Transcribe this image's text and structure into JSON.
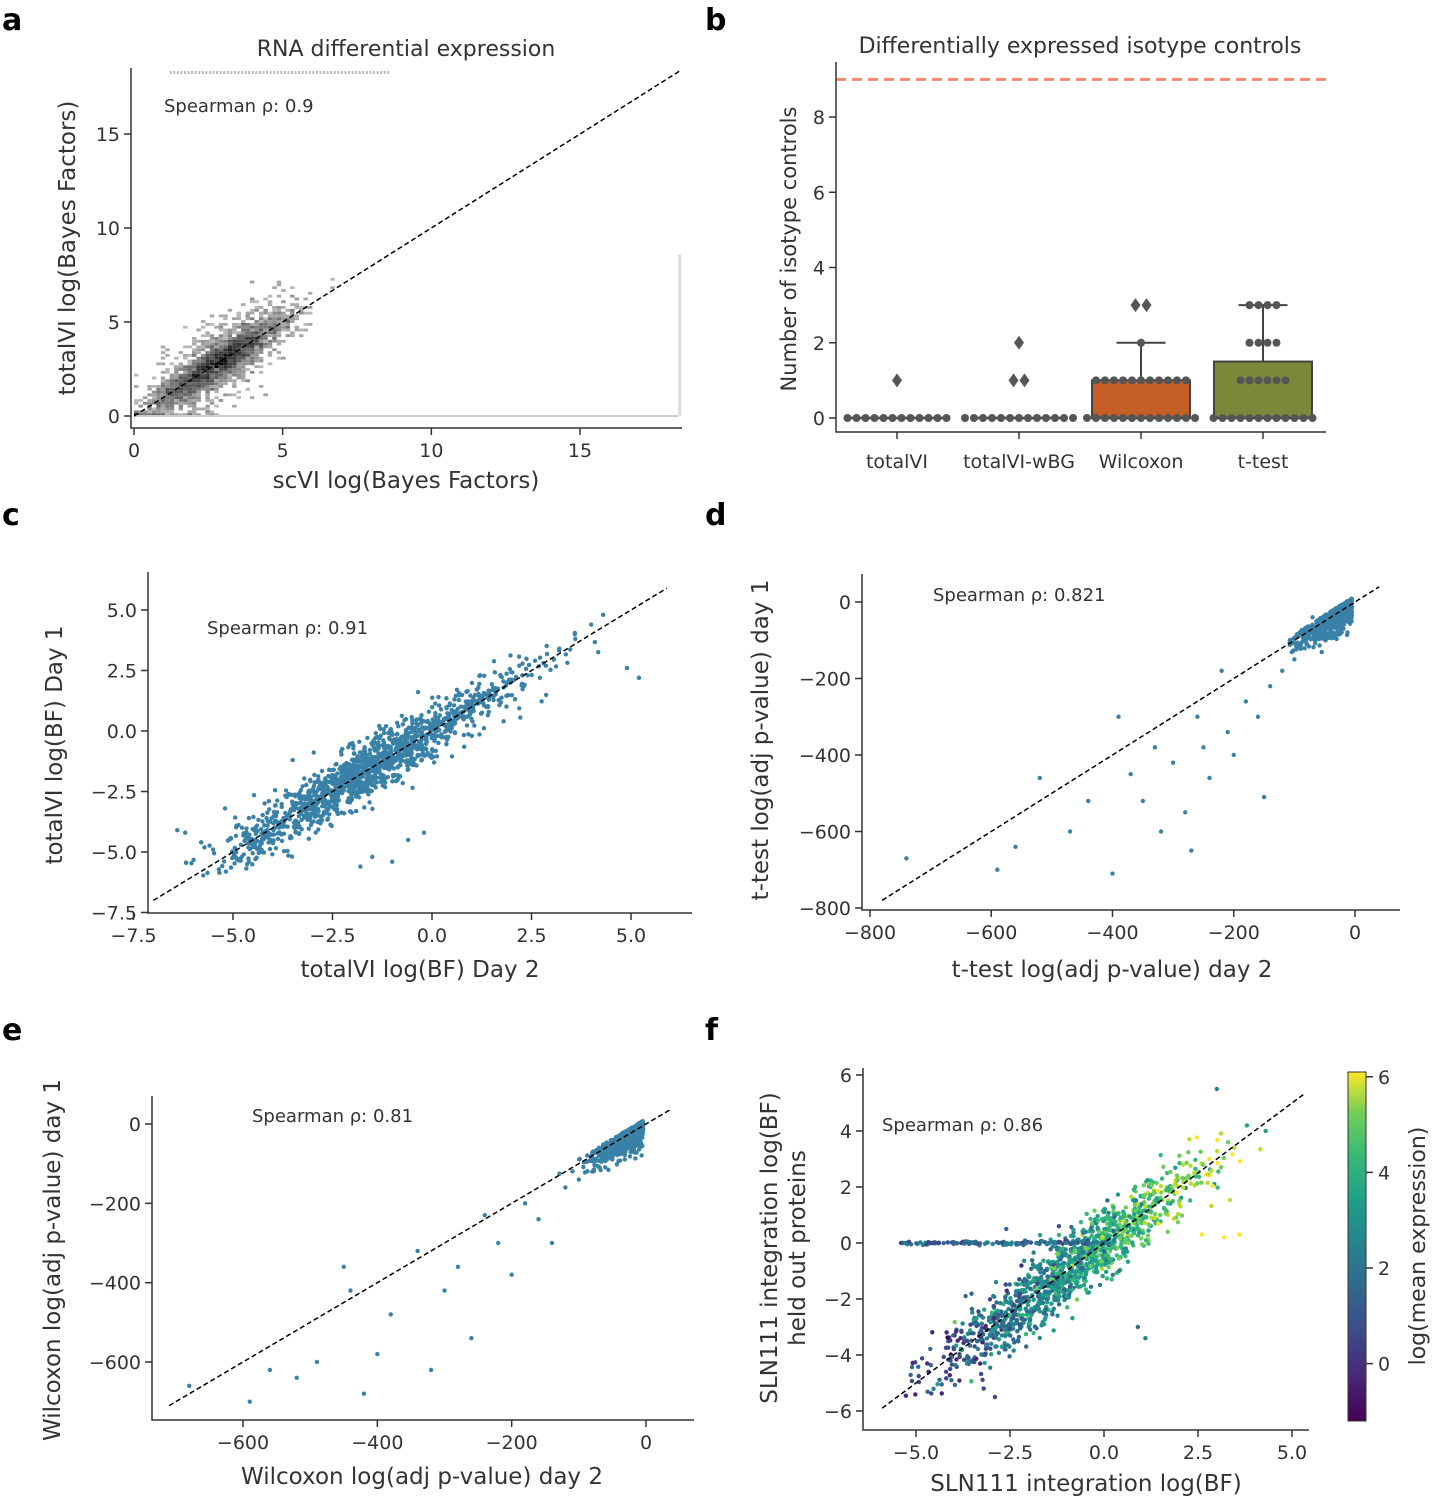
{
  "figure": {
    "panel_labels": [
      "a",
      "b",
      "c",
      "d",
      "e",
      "f"
    ]
  },
  "chart_data": [
    {
      "id": "a",
      "type": "heatmap",
      "title": "RNA differential expression",
      "xlabel": "scVI log(Bayes Factors)",
      "ylabel": "totalVI log(Bayes Factors)",
      "xlim": [
        -0.3,
        18.5
      ],
      "ylim": [
        -0.5,
        18.5
      ],
      "xticks": [
        0,
        5,
        10,
        15
      ],
      "yticks": [
        0,
        5,
        10,
        15
      ],
      "annotation": "Spearman ρ: 0.9",
      "spearman": 0.9,
      "identity_line": [
        [
          0,
          0
        ],
        [
          18.4,
          18.4
        ]
      ],
      "density": {
        "center": [
          2.8,
          2.7
        ],
        "dense_range": [
          0,
          8.5
        ],
        "saturation_value": 18.3,
        "zero_line": 0
      }
    },
    {
      "id": "b",
      "type": "bar",
      "title": "Differentially expressed isotype controls",
      "xlabel": "",
      "ylabel": "Number of isotype controls",
      "ylim": [
        -0.4,
        9.5
      ],
      "yticks": [
        0,
        2,
        4,
        6,
        8
      ],
      "categories": [
        "totalVI",
        "totalVI-wBG",
        "Wilcoxon",
        "t-test"
      ],
      "values": [
        0,
        0,
        1,
        1.5
      ],
      "colors": [
        "#3b76af",
        "#de8b3a",
        "#c65e27",
        "#7a8a3a"
      ],
      "whisker_high": [
        0,
        0,
        2,
        3
      ],
      "outliers": [
        [
          1
        ],
        [
          1,
          1,
          2
        ],
        [
          3,
          3
        ],
        []
      ],
      "reference_line": {
        "value": 9,
        "color": "#f08c70"
      },
      "swarm_points": [
        [
          0,
          0,
          0,
          0,
          0,
          0,
          0,
          0,
          0,
          0,
          0,
          0
        ],
        [
          0,
          0,
          0,
          0,
          0,
          0,
          0,
          0,
          0,
          0,
          0,
          0,
          0
        ],
        [
          0,
          0,
          0,
          0,
          0,
          0,
          0,
          0,
          0,
          0,
          0,
          0,
          0,
          1,
          1,
          1,
          1,
          1,
          1,
          1,
          1,
          1,
          1,
          1,
          2
        ],
        [
          0,
          0,
          0,
          0,
          0,
          0,
          0,
          0,
          0,
          0,
          0,
          0,
          1,
          1,
          1,
          1,
          1,
          1,
          2,
          2,
          2,
          2,
          3,
          3,
          3,
          3
        ]
      ]
    },
    {
      "id": "c",
      "type": "scatter",
      "title": "",
      "xlabel": "totalVI log(BF) Day 2",
      "ylabel": "totalVI log(BF) Day 1",
      "xlim": [
        -7.5,
        6.2
      ],
      "ylim": [
        -7.5,
        6.5
      ],
      "xticks": [
        -7.5,
        -5.0,
        -2.5,
        0.0,
        2.5,
        5.0
      ],
      "yticks": [
        -7.5,
        -5.0,
        -2.5,
        0.0,
        2.5,
        5.0
      ],
      "xticklabels": [
        "−7.5",
        "−5.0",
        "−2.5",
        "0.0",
        "2.5",
        "5.0"
      ],
      "yticklabels": [
        "−7.5",
        "−5.0",
        "−2.5",
        "0.0",
        "2.5",
        "5.0"
      ],
      "annotation": "Spearman ρ: 0.91",
      "spearman": 0.91,
      "point_color": "#3a81a8",
      "identity_line": [
        [
          -7.0,
          -7.0
        ],
        [
          5.9,
          5.9
        ]
      ],
      "sample_points": [
        [
          -6.2,
          -4.2
        ],
        [
          -5.8,
          -4.6
        ],
        [
          -5.2,
          -3.2
        ],
        [
          -4.6,
          -3.6
        ],
        [
          -4.1,
          -2.9
        ],
        [
          -3.6,
          -2.6
        ],
        [
          -3.2,
          -3.0
        ],
        [
          -2.8,
          -2.4
        ],
        [
          -2.4,
          -2.1
        ],
        [
          -2.0,
          -1.6
        ],
        [
          -1.6,
          -1.2
        ],
        [
          -1.2,
          -0.7
        ],
        [
          -0.8,
          -0.6
        ],
        [
          -0.4,
          -0.1
        ],
        [
          0.0,
          0.2
        ],
        [
          0.4,
          0.5
        ],
        [
          0.8,
          1.0
        ],
        [
          1.2,
          1.3
        ],
        [
          1.6,
          1.6
        ],
        [
          2.0,
          2.1
        ],
        [
          2.4,
          2.3
        ],
        [
          2.8,
          2.8
        ],
        [
          3.2,
          3.4
        ],
        [
          3.6,
          3.8
        ],
        [
          4.0,
          4.4
        ],
        [
          4.3,
          4.8
        ],
        [
          -1.5,
          -5.2
        ],
        [
          -1.0,
          -5.4
        ],
        [
          -0.6,
          -4.5
        ],
        [
          -0.2,
          -4.2
        ],
        [
          -1.8,
          -5.6
        ],
        [
          -3.5,
          -1.2
        ],
        [
          -2.0,
          -0.5
        ],
        [
          1.0,
          -0.2
        ],
        [
          1.8,
          0.4
        ],
        [
          5.2,
          2.2
        ],
        [
          4.9,
          2.6
        ],
        [
          -4.5,
          -4.8
        ],
        [
          -6.4,
          -4.1
        ],
        [
          -5.5,
          -4.9
        ]
      ]
    },
    {
      "id": "d",
      "type": "scatter",
      "title": "",
      "xlabel": "t-test log(adj p-value) day 2",
      "ylabel": "t-test log(adj p-value) day 1",
      "xlim": [
        -840,
        70
      ],
      "ylim": [
        -820,
        55
      ],
      "xticks": [
        -800,
        -600,
        -400,
        -200,
        0
      ],
      "yticks": [
        -800,
        -600,
        -400,
        -200,
        0
      ],
      "xticklabels": [
        "−800",
        "−600",
        "−400",
        "−200",
        "0"
      ],
      "yticklabels": [
        "−800",
        "−600",
        "−400",
        "−200",
        "0"
      ],
      "annotation": "Spearman ρ: 0.821",
      "spearman": 0.821,
      "point_color": "#3a81a8",
      "identity_line": [
        [
          -780,
          -780
        ],
        [
          40,
          40
        ]
      ],
      "sample_points": [
        [
          -740,
          -670
        ],
        [
          -590,
          -700
        ],
        [
          -560,
          -640
        ],
        [
          -520,
          -460
        ],
        [
          -470,
          -600
        ],
        [
          -440,
          -520
        ],
        [
          -400,
          -710
        ],
        [
          -390,
          -300
        ],
        [
          -370,
          -450
        ],
        [
          -350,
          -520
        ],
        [
          -330,
          -380
        ],
        [
          -320,
          -600
        ],
        [
          -300,
          -420
        ],
        [
          -280,
          -550
        ],
        [
          -270,
          -650
        ],
        [
          -260,
          -300
        ],
        [
          -250,
          -380
        ],
        [
          -240,
          -460
        ],
        [
          -220,
          -180
        ],
        [
          -210,
          -340
        ],
        [
          -200,
          -400
        ],
        [
          -180,
          -260
        ],
        [
          -160,
          -300
        ],
        [
          -150,
          -510
        ],
        [
          -140,
          -220
        ],
        [
          -120,
          -180
        ],
        [
          -100,
          -150
        ],
        [
          -80,
          -110
        ],
        [
          -60,
          -80
        ],
        [
          -40,
          -40
        ],
        [
          -30,
          -20
        ],
        [
          -20,
          -10
        ],
        [
          -10,
          -5
        ],
        [
          -50,
          -60
        ],
        [
          -70,
          -40
        ],
        [
          -90,
          -120
        ]
      ]
    },
    {
      "id": "e",
      "type": "scatter",
      "title": "",
      "xlabel": "Wilcoxon log(adj p-value) day 2",
      "ylabel": "Wilcoxon log(adj p-value) day 1",
      "xlim": [
        -750,
        50
      ],
      "ylim": [
        -745,
        70
      ],
      "xticks": [
        -600,
        -400,
        -200,
        0
      ],
      "yticks": [
        -600,
        -400,
        -200,
        0
      ],
      "xticklabels": [
        "−600",
        "−400",
        "−200",
        "0"
      ],
      "yticklabels": [
        "−600",
        "−400",
        "−200",
        "0"
      ],
      "annotation": "Spearman ρ: 0.81",
      "spearman": 0.81,
      "point_color": "#3a81a8",
      "identity_line": [
        [
          -710,
          -710
        ],
        [
          35,
          35
        ]
      ],
      "sample_points": [
        [
          -680,
          -660
        ],
        [
          -590,
          -700
        ],
        [
          -560,
          -620
        ],
        [
          -520,
          -640
        ],
        [
          -490,
          -600
        ],
        [
          -450,
          -360
        ],
        [
          -440,
          -420
        ],
        [
          -420,
          -680
        ],
        [
          -400,
          -580
        ],
        [
          -380,
          -480
        ],
        [
          -340,
          -320
        ],
        [
          -320,
          -620
        ],
        [
          -300,
          -420
        ],
        [
          -280,
          -360
        ],
        [
          -260,
          -540
        ],
        [
          -240,
          -230
        ],
        [
          -220,
          -300
        ],
        [
          -200,
          -380
        ],
        [
          -180,
          -200
        ],
        [
          -160,
          -240
        ],
        [
          -140,
          -300
        ],
        [
          -120,
          -160
        ],
        [
          -100,
          -140
        ],
        [
          -80,
          -120
        ],
        [
          -60,
          -90
        ],
        [
          -40,
          -50
        ],
        [
          -30,
          -30
        ],
        [
          -20,
          -15
        ],
        [
          -10,
          -5
        ],
        [
          -50,
          -70
        ],
        [
          -70,
          -60
        ]
      ]
    },
    {
      "id": "f",
      "type": "scatter",
      "title": "",
      "xlabel": "SLN111 integration log(BF)",
      "ylabel": "SLN111 integration log(BF)\nheld out proteins",
      "ylabel_lines": [
        "SLN111 integration log(BF)",
        "held out proteins"
      ],
      "xlim": [
        -6.6,
        6.2
      ],
      "ylim": [
        -6.6,
        6.3
      ],
      "xticks": [
        -5.0,
        -2.5,
        0.0,
        2.5,
        5.0
      ],
      "yticks": [
        -6,
        -4,
        -2,
        0,
        2,
        4,
        6
      ],
      "xticklabels": [
        "−5.0",
        "−2.5",
        "0.0",
        "2.5",
        "5.0"
      ],
      "yticklabels": [
        "−6",
        "−4",
        "−2",
        "0",
        "2",
        "4",
        "6"
      ],
      "annotation": "Spearman ρ: 0.86",
      "spearman": 0.86,
      "identity_line": [
        [
          -5.9,
          -5.9
        ],
        [
          5.3,
          5.3
        ]
      ],
      "colorbar": {
        "label": "log(mean expression)",
        "range": [
          -1.2,
          6.1
        ],
        "ticks": [
          0,
          2,
          4,
          6
        ],
        "ticklabels": [
          "0",
          "2",
          "4",
          "6"
        ],
        "colormap": "viridis"
      },
      "sample_points": [
        [
          -5.4,
          0.0,
          0.4
        ],
        [
          -4.6,
          0.0,
          0.6
        ],
        [
          -3.8,
          0.0,
          0.8
        ],
        [
          -2.8,
          0.0,
          1.5
        ],
        [
          -1.8,
          0.0,
          1.8
        ],
        [
          -1.0,
          0.0,
          2.0
        ],
        [
          -0.3,
          0.0,
          2.1
        ],
        [
          -2.6,
          0.5,
          1.0
        ],
        [
          -4.7,
          -4.3,
          0.2
        ],
        [
          -4.2,
          -4.6,
          0.9
        ],
        [
          -3.6,
          -4.1,
          1.4
        ],
        [
          -3.0,
          -3.6,
          2.2
        ],
        [
          -2.4,
          -2.9,
          1.8
        ],
        [
          -1.8,
          -2.3,
          2.4
        ],
        [
          -1.2,
          -1.6,
          2.0
        ],
        [
          -0.6,
          -0.9,
          1.4
        ],
        [
          0.0,
          -0.3,
          1.0
        ],
        [
          0.6,
          0.6,
          2.6
        ],
        [
          1.2,
          1.3,
          3.4
        ],
        [
          1.8,
          2.0,
          4.6
        ],
        [
          2.4,
          2.5,
          5.3
        ],
        [
          2.8,
          3.0,
          5.7
        ],
        [
          3.3,
          3.6,
          4.4
        ],
        [
          3.8,
          4.2,
          3.1
        ],
        [
          4.3,
          4.0,
          2.6
        ],
        [
          2.6,
          0.3,
          5.8
        ],
        [
          3.2,
          0.2,
          5.5
        ],
        [
          3.6,
          0.3,
          5.8
        ],
        [
          0.9,
          -3.0,
          1.6
        ],
        [
          1.1,
          -3.4,
          2.0
        ],
        [
          -3.2,
          -5.2,
          0.5
        ],
        [
          -2.9,
          -5.5,
          0.3
        ],
        [
          0.4,
          -1.0,
          2.4
        ],
        [
          1.5,
          1.0,
          4.0
        ],
        [
          2.1,
          2.8,
          4.9
        ],
        [
          -1.5,
          -1.2,
          1.4
        ],
        [
          3.0,
          5.5,
          1.8
        ],
        [
          -1.2,
          0.6,
          0.7
        ],
        [
          -2.0,
          -3.0,
          2.2
        ],
        [
          2.0,
          1.4,
          5.1
        ]
      ]
    }
  ]
}
